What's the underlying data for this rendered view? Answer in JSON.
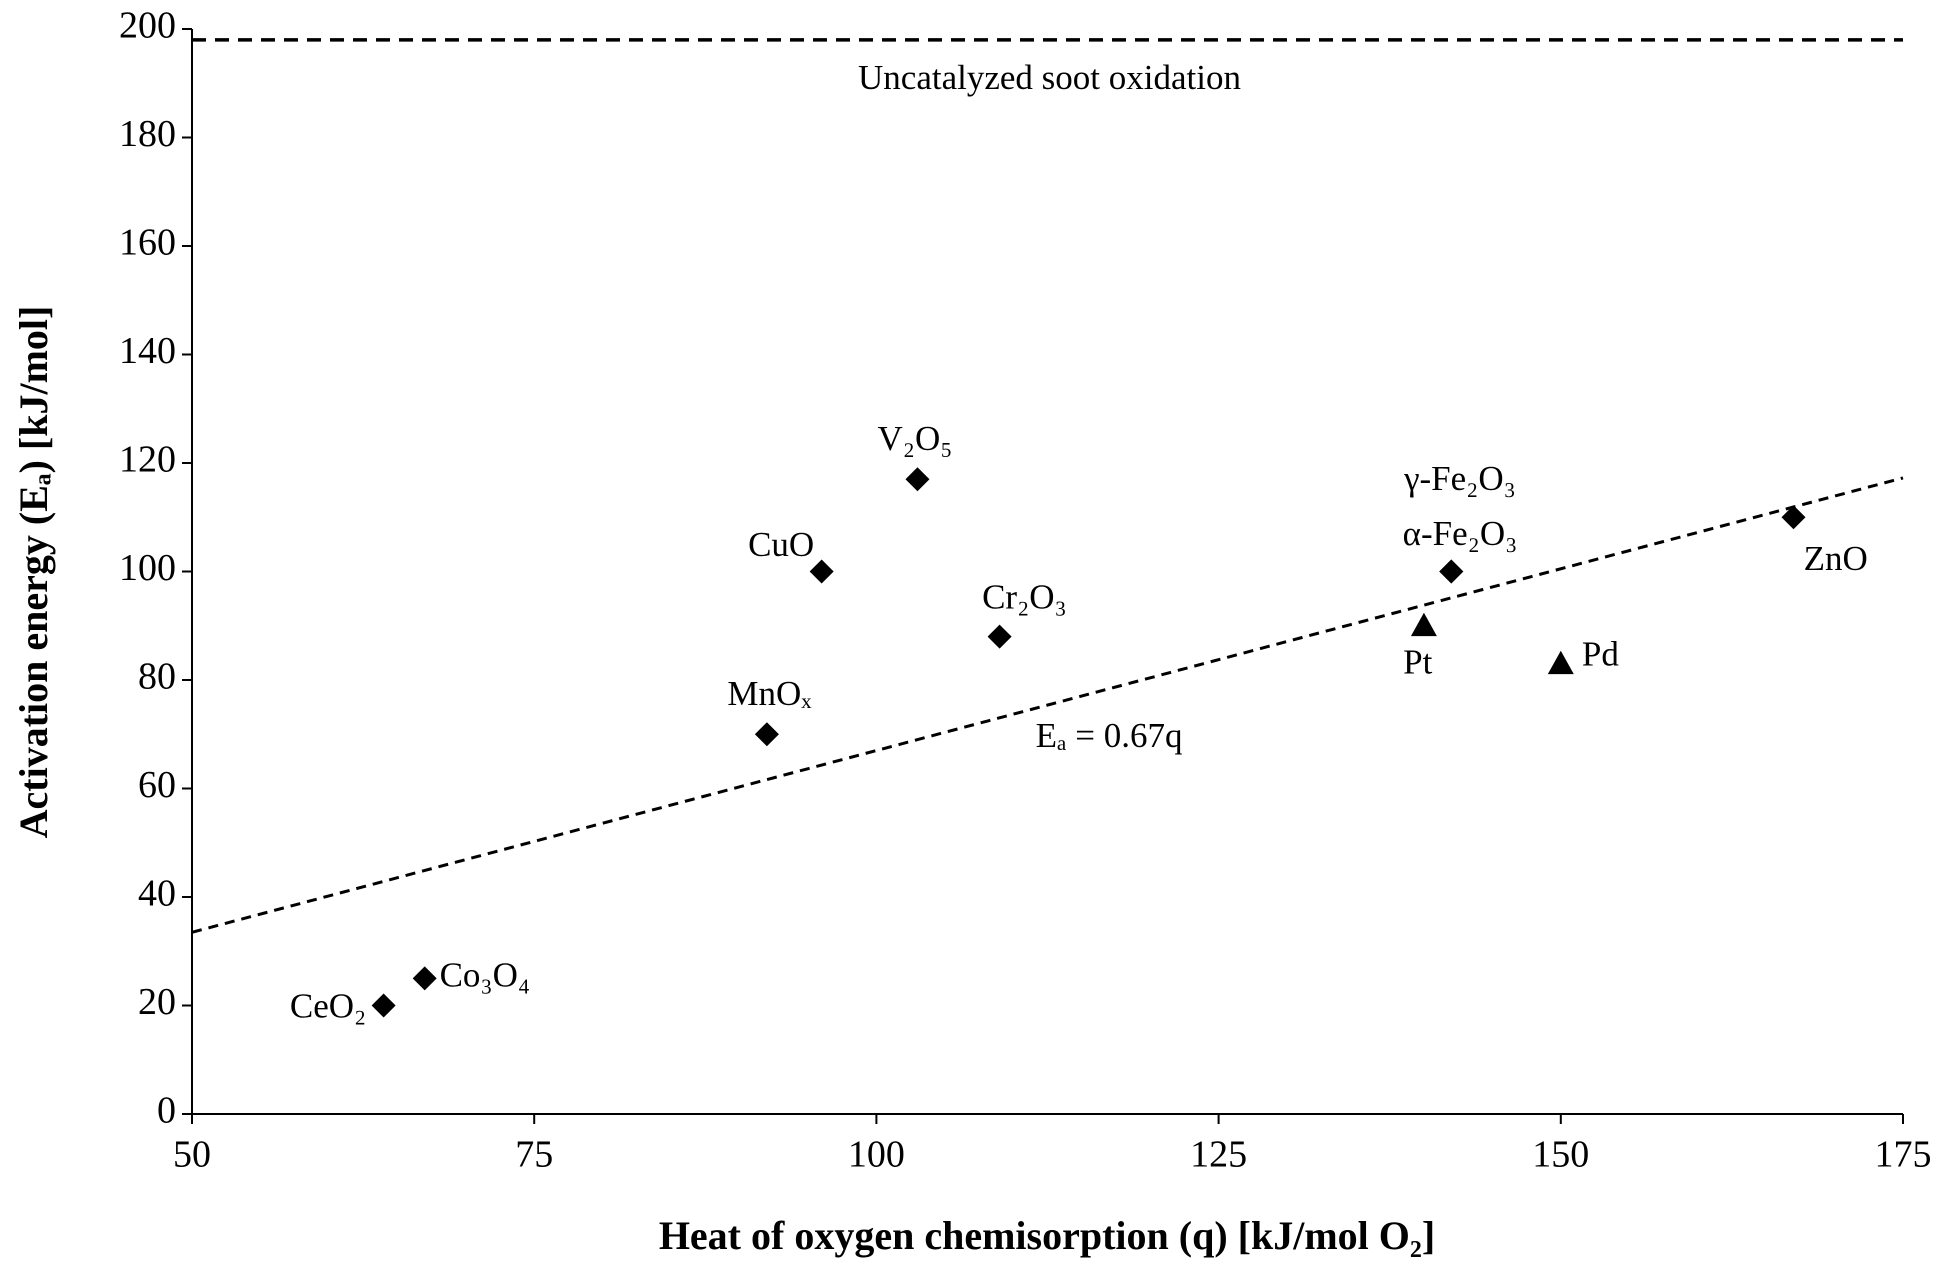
{
  "chart_data": {
    "type": "scatter",
    "x_label": "Heat of oxygen chemisorption (q) [kJ/mol O₂]",
    "y_label": "Activation energy (Eₐ) [kJ/mol]",
    "xlim": [
      50,
      175
    ],
    "xticks": [
      50,
      75,
      100,
      125,
      150,
      175
    ],
    "ylim": [
      0,
      200
    ],
    "yticks": [
      0,
      20,
      40,
      60,
      80,
      100,
      120,
      140,
      160,
      180,
      200
    ],
    "series": [
      {
        "marker": "diamond",
        "color": "#000000",
        "labels": [
          "CeO₂",
          "Co₃O₄",
          "MnOₓ",
          "CuO",
          "V₂O₅",
          "Cr₂O₃",
          "α-Fe₂O₃",
          "γ-Fe₂O₃",
          "ZnO"
        ],
        "x": [
          64,
          67,
          92,
          96,
          103,
          109,
          142,
          142,
          167
        ],
        "values": [
          20,
          25,
          70,
          100,
          117,
          88,
          100,
          100,
          110
        ]
      },
      {
        "marker": "triangle",
        "color": "#000000",
        "labels": [
          "Pt",
          "Pd"
        ],
        "x": [
          140,
          150
        ],
        "values": [
          90,
          83
        ]
      }
    ],
    "lines": [
      {
        "label": "Uncatalyzed soot oxidation",
        "y": 198
      },
      {
        "label": "Eₐ = 0.67q",
        "slope": 0.67
      }
    ]
  }
}
